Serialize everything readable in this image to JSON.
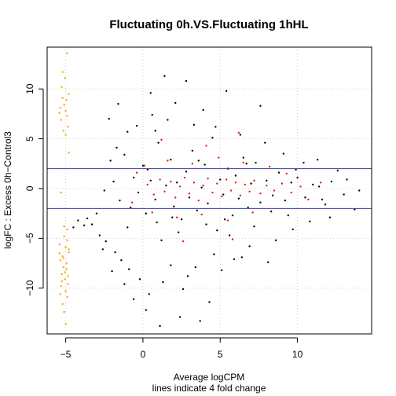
{
  "chart_data": {
    "type": "scatter",
    "title": "Fluctuating 0h.VS.Fluctuating 1hHL",
    "xlabel": "Average logCPM",
    "xlabel_sub": "lines indicate 4 fold change",
    "ylabel": "logFC : Excess 0h−Control3",
    "xlim": [
      -6.2,
      14.8
    ],
    "ylim": [
      -14.6,
      14.2
    ],
    "x_ticks": [
      -5,
      0,
      5,
      10
    ],
    "x_tick_labels": [
      "−5",
      "0",
      "5",
      "10"
    ],
    "y_ticks": [
      -10,
      -5,
      0,
      5,
      10
    ],
    "y_tick_labels": [
      "−10",
      "−5",
      "0",
      "5",
      "10"
    ],
    "grid": true,
    "reference_lines_y": [
      2,
      -2
    ],
    "colors": {
      "all_genes": "#000000",
      "highlighted": "#e41a1c",
      "zero_count": "#ffa500",
      "fold_change_lines": "#3a3aa8",
      "grid": "#d0d0d0"
    },
    "series": [
      {
        "group": "all_genes",
        "points": [
          [
            -1.5,
            -1.2
          ],
          [
            -1.2,
            3.4
          ],
          [
            -1,
            -3.9
          ],
          [
            -0.6,
            1.1
          ],
          [
            -0.3,
            -0.4
          ],
          [
            0,
            2.3
          ],
          [
            0.2,
            -2.5
          ],
          [
            0.5,
            0.8
          ],
          [
            0.8,
            -1.1
          ],
          [
            1,
            4.6
          ],
          [
            1.2,
            -5.2
          ],
          [
            1.5,
            0.3
          ],
          [
            1.8,
            2.9
          ],
          [
            2,
            -1.8
          ],
          [
            2.2,
            0.6
          ],
          [
            2.5,
            -3.1
          ],
          [
            2.8,
            1.7
          ],
          [
            3,
            -0.9
          ],
          [
            3.2,
            3.8
          ],
          [
            3.5,
            -2.2
          ],
          [
            3.8,
            0.1
          ],
          [
            4,
            2.4
          ],
          [
            4.2,
            -1.5
          ],
          [
            4.5,
            5.1
          ],
          [
            4.8,
            -4.2
          ],
          [
            5,
            0.9
          ],
          [
            5.2,
            -0.6
          ],
          [
            5.5,
            2
          ],
          [
            5.8,
            -2.7
          ],
          [
            6,
            1.3
          ],
          [
            6.2,
            -1
          ],
          [
            6.5,
            3.1
          ],
          [
            6.8,
            -1.9
          ],
          [
            7,
            0.5
          ],
          [
            7.3,
            2.6
          ],
          [
            7.6,
            -1.4
          ],
          [
            8,
            0.8
          ],
          [
            8.4,
            -0.7
          ],
          [
            8.8,
            1.6
          ],
          [
            9.2,
            -1.2
          ],
          [
            9.6,
            0.6
          ],
          [
            10,
            1.1
          ],
          [
            10.5,
            -0.9
          ],
          [
            11,
            0.4
          ],
          [
            11.6,
            -1.1
          ],
          [
            12.2,
            0.7
          ],
          [
            13,
            -0.6
          ],
          [
            14,
            -0.2
          ],
          [
            0.5,
            9.6
          ],
          [
            1.4,
            11.3
          ],
          [
            2.8,
            10.8
          ],
          [
            5.4,
            9.8
          ],
          [
            7.6,
            8.3
          ],
          [
            -2.2,
            7
          ],
          [
            -1.6,
            8.5
          ],
          [
            0.6,
            7.4
          ],
          [
            2.1,
            8.6
          ],
          [
            3.9,
            7.9
          ],
          [
            -2.6,
            -6.1
          ],
          [
            -2,
            -8.3
          ],
          [
            -1.2,
            -9.6
          ],
          [
            -0.6,
            -11.1
          ],
          [
            0.2,
            -12.2
          ],
          [
            1.1,
            -13.8
          ],
          [
            2.4,
            -12.9
          ],
          [
            3.7,
            -13.3
          ],
          [
            4.3,
            -11.4
          ],
          [
            2.6,
            -10.1
          ],
          [
            5.1,
            -8.2
          ],
          [
            6.4,
            -6.9
          ],
          [
            8.1,
            -7.4
          ],
          [
            1.8,
            -7.7
          ],
          [
            -3,
            -2.5
          ],
          [
            -3.3,
            -3.6
          ],
          [
            -2.8,
            -4.7
          ],
          [
            -2.4,
            -5.3
          ],
          [
            -1.8,
            -6.4
          ],
          [
            -1.4,
            -7.2
          ],
          [
            -0.9,
            -8.1
          ],
          [
            -3.6,
            -3
          ],
          [
            -3.8,
            -3.7
          ],
          [
            -4.2,
            -3.2
          ],
          [
            -4.5,
            -3.9
          ],
          [
            -2.1,
            2.8
          ],
          [
            -1.7,
            4.1
          ],
          [
            -1,
            5.7
          ],
          [
            -0.4,
            6.3
          ],
          [
            0.8,
            5.8
          ],
          [
            1.6,
            6.9
          ],
          [
            3.3,
            6.4
          ],
          [
            4.7,
            6.2
          ],
          [
            6.3,
            5.4
          ],
          [
            7.9,
            4.6
          ],
          [
            9.1,
            3.5
          ],
          [
            10.4,
            2.6
          ],
          [
            11.3,
            2.9
          ],
          [
            12.6,
            1.8
          ],
          [
            13.7,
            -2.1
          ],
          [
            12.1,
            -2.9
          ],
          [
            10.8,
            -3.3
          ],
          [
            9.7,
            -4.1
          ],
          [
            8.6,
            -5.2
          ],
          [
            6.9,
            -5.8
          ],
          [
            5.9,
            -7.1
          ],
          [
            4.6,
            -6.6
          ],
          [
            3.4,
            -7.9
          ],
          [
            2.9,
            -8.8
          ],
          [
            1.3,
            -9.4
          ],
          [
            0.4,
            -10.6
          ],
          [
            -0.2,
            -9.1
          ],
          [
            0.9,
            -3.4
          ],
          [
            2.3,
            -4.4
          ],
          [
            4.1,
            -3.6
          ],
          [
            5.6,
            -4.7
          ],
          [
            7.2,
            -3.8
          ],
          [
            9.4,
            -2.7
          ],
          [
            11.8,
            -1.6
          ],
          [
            -2.5,
            -0.2
          ],
          [
            -1.9,
            0.7
          ],
          [
            -0.8,
            -1.9
          ],
          [
            0.3,
            1.9
          ],
          [
            1.9,
            -2.9
          ],
          [
            3.6,
            2.8
          ],
          [
            5.3,
            -3.1
          ],
          [
            6.7,
            2.5
          ],
          [
            8.3,
            -2.3
          ],
          [
            9.9,
            1.9
          ],
          [
            11.4,
            0.2
          ],
          [
            13.2,
            0.9
          ]
        ]
      },
      {
        "group": "highlighted",
        "points": [
          [
            0.3,
            0.4
          ],
          [
            0.7,
            -0.6
          ],
          [
            1.1,
            0.9
          ],
          [
            1.4,
            -0.3
          ],
          [
            1.8,
            0.7
          ],
          [
            2.1,
            -0.9
          ],
          [
            2.4,
            0.2
          ],
          [
            2.7,
            1.1
          ],
          [
            3,
            -0.5
          ],
          [
            3.3,
            0.6
          ],
          [
            3.6,
            -1.2
          ],
          [
            3.9,
            0.3
          ],
          [
            4.2,
            1
          ],
          [
            4.5,
            -0.4
          ],
          [
            4.8,
            0.5
          ],
          [
            5.1,
            -0.8
          ],
          [
            5.4,
            0.9
          ],
          [
            5.7,
            -0.2
          ],
          [
            6,
            0.6
          ],
          [
            6.3,
            -0.7
          ],
          [
            6.6,
            0.4
          ],
          [
            6.9,
            -0.3
          ],
          [
            7.2,
            0.8
          ],
          [
            7.6,
            -0.5
          ],
          [
            8,
            0.3
          ],
          [
            8.5,
            -0.2
          ],
          [
            9,
            0.5
          ],
          [
            9.6,
            -0.4
          ],
          [
            10.2,
            0.2
          ],
          [
            0.1,
            2.3
          ],
          [
            1.6,
            2.8
          ],
          [
            3.2,
            2.5
          ],
          [
            4.9,
            3.1
          ],
          [
            6.5,
            2.6
          ],
          [
            8.2,
            2.2
          ],
          [
            0.6,
            -2.4
          ],
          [
            2.2,
            -2.9
          ],
          [
            3.8,
            -2.6
          ],
          [
            5.5,
            -3.2
          ],
          [
            7.1,
            -2.4
          ],
          [
            1.2,
            4.9
          ],
          [
            4.1,
            4.3
          ],
          [
            6.2,
            5.6
          ],
          [
            2.6,
            -5.3
          ],
          [
            5.8,
            -5.1
          ],
          [
            -0.4,
            1.6
          ],
          [
            -0.7,
            -1.4
          ],
          [
            9.3,
            1.5
          ],
          [
            10.7,
            -1.1
          ],
          [
            11.5,
            0.6
          ]
        ]
      },
      {
        "group": "zero_count",
        "points": [
          [
            -5.2,
            11.7
          ],
          [
            -4.9,
            13.6
          ],
          [
            -5.4,
            7.6
          ],
          [
            -5.1,
            8.4
          ],
          [
            -4.8,
            9.5
          ],
          [
            -5.3,
            6.9
          ],
          [
            -5,
            7.8
          ],
          [
            -4.95,
            8.9
          ],
          [
            -5.25,
            10.2
          ],
          [
            -4.85,
            6.2
          ],
          [
            -5.15,
            5.8
          ],
          [
            -5.05,
            11.1
          ],
          [
            -5.35,
            8.1
          ],
          [
            -4.9,
            7.3
          ],
          [
            -5.2,
            9.1
          ],
          [
            -5,
            5.4
          ],
          [
            -4.8,
            3.6
          ],
          [
            -5.3,
            -0.4
          ],
          [
            -4.9,
            -4.1
          ],
          [
            -5.1,
            -4.8
          ],
          [
            -5.4,
            -5.6
          ],
          [
            -5,
            -5.9
          ],
          [
            -4.8,
            -6.4
          ],
          [
            -5.2,
            -6.8
          ],
          [
            -5.35,
            -7.2
          ],
          [
            -4.95,
            -7.5
          ],
          [
            -5.15,
            -7.9
          ],
          [
            -5.05,
            -8.4
          ],
          [
            -4.85,
            -8.8
          ],
          [
            -5.25,
            -9.3
          ],
          [
            -5.3,
            -9.8
          ],
          [
            -5,
            -10.3
          ],
          [
            -4.9,
            -10.9
          ],
          [
            -5.2,
            -11.6
          ],
          [
            -5.1,
            -12.4
          ],
          [
            -5,
            -13.6
          ],
          [
            -4.8,
            -6.1
          ],
          [
            -5.4,
            -6.5
          ],
          [
            -5.15,
            -7
          ],
          [
            -4.95,
            -8.1
          ],
          [
            -5.25,
            -8.6
          ],
          [
            -5.05,
            -9.1
          ],
          [
            -4.85,
            -9.6
          ],
          [
            -5.35,
            -10.6
          ],
          [
            -4.9,
            -5.2
          ],
          [
            -5.1,
            -3.8
          ]
        ]
      }
    ]
  }
}
